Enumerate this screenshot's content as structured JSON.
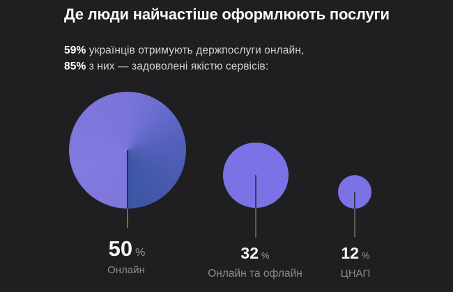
{
  "header": {
    "title": "Де люди найчастіше оформлюють послуги",
    "stats": [
      {
        "bold": "59%",
        "text": " українців отримують держпослуги онлайн,"
      },
      {
        "bold": "85%",
        "text": " з них — задоволені якістю сервісів:"
      }
    ]
  },
  "chart_data": {
    "type": "bubble",
    "title": "Де люди найчастіше оформлюють послуги",
    "categories": [
      "Онлайн",
      "Онлайн та офлайн",
      "ЦНАП"
    ],
    "values": [
      50,
      32,
      12
    ],
    "unit": "%",
    "legend": false,
    "grid": false,
    "layout": "three circles sized by value, stems pointing down to value labels, dark background"
  },
  "bubbles": [
    {
      "value": "50",
      "unit": "%",
      "label": "Онлайн"
    },
    {
      "value": "32",
      "unit": "%",
      "label": "Онлайн та офлайн"
    },
    {
      "value": "12",
      "unit": "%",
      "label": "ЦНАП"
    }
  ],
  "colors": {
    "background": "#1f1f21",
    "bubble_solid": "#7c72e6",
    "bubble_gradient_light": "#7b74d9",
    "bubble_gradient_dark": "#3d55a6",
    "text_primary": "#fafafa",
    "text_secondary": "#d2d2d3",
    "text_muted": "#8d8d8f"
  }
}
